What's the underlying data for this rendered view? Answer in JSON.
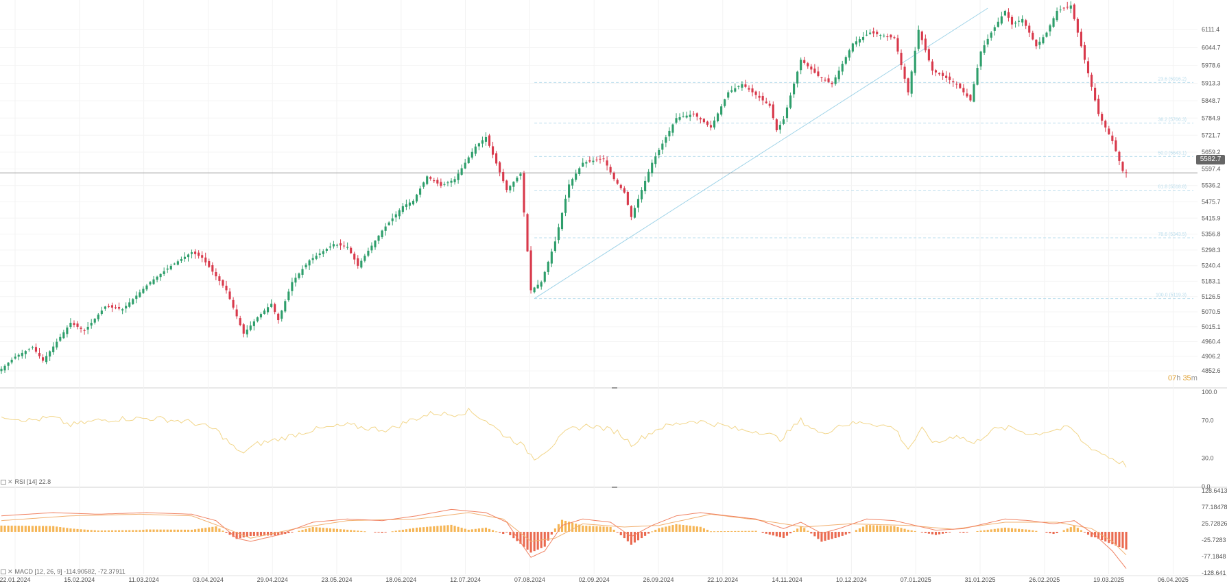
{
  "chart_data": [
    {
      "type": "candlestick",
      "pane": "price",
      "ylim": [
        4800,
        6190
      ],
      "y_ticks": [
        "6111.4",
        "6044.7",
        "5978.6",
        "5913.3",
        "5848.7",
        "5784.9",
        "5721.7",
        "5659.2",
        "5597.4",
        "5536.2",
        "5475.7",
        "5415.9",
        "5356.8",
        "5298.3",
        "5240.4",
        "5183.1",
        "5126.5",
        "5070.5",
        "5015.1",
        "4960.4",
        "4906.2",
        "4852.6"
      ],
      "last_price": "5582.7",
      "countdown": {
        "hours": "07",
        "h": "h",
        "minutes": "35",
        "m": "m"
      },
      "fibonacci": [
        {
          "label": "23.6 (5916.2)",
          "price": 5916.2
        },
        {
          "label": "38.2 (5766.3)",
          "price": 5766.3
        },
        {
          "label": "50.0 (5643.1)",
          "price": 5643.1
        },
        {
          "label": "61.8 (5518.8)",
          "price": 5518.8
        },
        {
          "label": "78.6 (5343.5)",
          "price": 5343.5
        },
        {
          "label": "100.0 (5119.3)",
          "price": 5119.3
        }
      ],
      "trendline": {
        "from": {
          "x": 154,
          "y": 5119.3
        },
        "to": {
          "x": 285,
          "y": 6190
        }
      },
      "keypoints": [
        [
          0,
          4860
        ],
        [
          4,
          4905
        ],
        [
          9,
          4940
        ],
        [
          12,
          4890
        ],
        [
          20,
          5030
        ],
        [
          24,
          5000
        ],
        [
          30,
          5090
        ],
        [
          35,
          5080
        ],
        [
          43,
          5180
        ],
        [
          49,
          5240
        ],
        [
          55,
          5290
        ],
        [
          58,
          5270
        ],
        [
          65,
          5150
        ],
        [
          70,
          4990
        ],
        [
          74,
          5050
        ],
        [
          78,
          5100
        ],
        [
          80,
          5040
        ],
        [
          84,
          5180
        ],
        [
          89,
          5260
        ],
        [
          96,
          5320
        ],
        [
          100,
          5310
        ],
        [
          103,
          5240
        ],
        [
          110,
          5370
        ],
        [
          116,
          5460
        ],
        [
          119,
          5480
        ],
        [
          123,
          5570
        ],
        [
          127,
          5535
        ],
        [
          131,
          5560
        ],
        [
          137,
          5680
        ],
        [
          140,
          5715
        ],
        [
          146,
          5520
        ],
        [
          150,
          5580
        ],
        [
          153,
          5150
        ],
        [
          156,
          5180
        ],
        [
          160,
          5330
        ],
        [
          164,
          5540
        ],
        [
          168,
          5620
        ],
        [
          174,
          5635
        ],
        [
          177,
          5560
        ],
        [
          180,
          5510
        ],
        [
          182,
          5420
        ],
        [
          188,
          5620
        ],
        [
          195,
          5785
        ],
        [
          200,
          5800
        ],
        [
          205,
          5750
        ],
        [
          210,
          5880
        ],
        [
          214,
          5910
        ],
        [
          219,
          5860
        ],
        [
          222,
          5830
        ],
        [
          224,
          5740
        ],
        [
          226,
          5780
        ],
        [
          231,
          6000
        ],
        [
          236,
          5940
        ],
        [
          240,
          5910
        ],
        [
          246,
          6060
        ],
        [
          251,
          6100
        ],
        [
          258,
          6080
        ],
        [
          262,
          5880
        ],
        [
          265,
          6110
        ],
        [
          269,
          5960
        ],
        [
          272,
          5940
        ],
        [
          276,
          5910
        ],
        [
          280,
          5850
        ],
        [
          283,
          6030
        ],
        [
          286,
          6100
        ],
        [
          290,
          6180
        ],
        [
          292,
          6130
        ],
        [
          295,
          6150
        ],
        [
          299,
          6050
        ],
        [
          302,
          6100
        ],
        [
          305,
          6180
        ],
        [
          309,
          6200
        ],
        [
          312,
          6050
        ],
        [
          317,
          5800
        ],
        [
          321,
          5700
        ],
        [
          324,
          5590
        ],
        [
          325,
          5582.7
        ]
      ]
    },
    {
      "type": "line",
      "pane": "rsi",
      "label": "RSI [14] 22.8",
      "ylim": [
        0,
        100
      ],
      "y_ticks": [
        "100.0",
        "70.0",
        "30.0",
        "0.0"
      ],
      "keypoints": [
        [
          0,
          75
        ],
        [
          8,
          70
        ],
        [
          15,
          73
        ],
        [
          20,
          65
        ],
        [
          28,
          70
        ],
        [
          36,
          72
        ],
        [
          45,
          72
        ],
        [
          55,
          68
        ],
        [
          62,
          60
        ],
        [
          69,
          35
        ],
        [
          74,
          45
        ],
        [
          80,
          50
        ],
        [
          90,
          60
        ],
        [
          100,
          65
        ],
        [
          105,
          62
        ],
        [
          112,
          60
        ],
        [
          118,
          70
        ],
        [
          125,
          78
        ],
        [
          130,
          76
        ],
        [
          135,
          80
        ],
        [
          140,
          70
        ],
        [
          145,
          55
        ],
        [
          150,
          45
        ],
        [
          154,
          30
        ],
        [
          158,
          40
        ],
        [
          164,
          60
        ],
        [
          170,
          65
        ],
        [
          178,
          58
        ],
        [
          182,
          45
        ],
        [
          190,
          62
        ],
        [
          200,
          70
        ],
        [
          208,
          65
        ],
        [
          213,
          60
        ],
        [
          220,
          58
        ],
        [
          225,
          50
        ],
        [
          231,
          70
        ],
        [
          237,
          55
        ],
        [
          242,
          65
        ],
        [
          250,
          68
        ],
        [
          258,
          62
        ],
        [
          262,
          40
        ],
        [
          266,
          60
        ],
        [
          270,
          45
        ],
        [
          276,
          55
        ],
        [
          281,
          45
        ],
        [
          286,
          60
        ],
        [
          292,
          62
        ],
        [
          298,
          55
        ],
        [
          304,
          60
        ],
        [
          309,
          62
        ],
        [
          313,
          45
        ],
        [
          318,
          35
        ],
        [
          322,
          28
        ],
        [
          325,
          22.8
        ]
      ]
    },
    {
      "type": "bar+line",
      "pane": "macd",
      "label": "MACD [12, 26, 9] -114.90582, -72.37911",
      "ylim": [
        -128.641,
        128.6413
      ],
      "y_ticks": [
        "128.6413",
        "77.18478",
        "25.72826",
        "-25.7283",
        "-77.1848",
        "-128.641"
      ],
      "macd_keypoints": [
        [
          0,
          50
        ],
        [
          15,
          60
        ],
        [
          28,
          55
        ],
        [
          42,
          60
        ],
        [
          55,
          55
        ],
        [
          62,
          35
        ],
        [
          68,
          -20
        ],
        [
          72,
          -30
        ],
        [
          80,
          -10
        ],
        [
          90,
          30
        ],
        [
          100,
          40
        ],
        [
          110,
          35
        ],
        [
          120,
          50
        ],
        [
          130,
          70
        ],
        [
          140,
          60
        ],
        [
          146,
          30
        ],
        [
          153,
          -80
        ],
        [
          157,
          -60
        ],
        [
          162,
          20
        ],
        [
          168,
          40
        ],
        [
          176,
          30
        ],
        [
          182,
          -15
        ],
        [
          188,
          20
        ],
        [
          195,
          50
        ],
        [
          202,
          60
        ],
        [
          210,
          50
        ],
        [
          218,
          40
        ],
        [
          226,
          10
        ],
        [
          231,
          30
        ],
        [
          237,
          -5
        ],
        [
          242,
          10
        ],
        [
          250,
          40
        ],
        [
          258,
          35
        ],
        [
          264,
          20
        ],
        [
          270,
          5
        ],
        [
          278,
          10
        ],
        [
          284,
          25
        ],
        [
          290,
          40
        ],
        [
          297,
          35
        ],
        [
          304,
          25
        ],
        [
          310,
          35
        ],
        [
          316,
          -10
        ],
        [
          321,
          -60
        ],
        [
          325,
          -114.90582
        ]
      ],
      "signal_keypoints": [
        [
          0,
          35
        ],
        [
          20,
          50
        ],
        [
          40,
          55
        ],
        [
          55,
          50
        ],
        [
          65,
          10
        ],
        [
          72,
          -20
        ],
        [
          85,
          10
        ],
        [
          100,
          35
        ],
        [
          120,
          40
        ],
        [
          135,
          60
        ],
        [
          145,
          40
        ],
        [
          153,
          -30
        ],
        [
          160,
          -20
        ],
        [
          168,
          25
        ],
        [
          180,
          15
        ],
        [
          190,
          20
        ],
        [
          205,
          55
        ],
        [
          220,
          35
        ],
        [
          232,
          15
        ],
        [
          245,
          25
        ],
        [
          262,
          20
        ],
        [
          275,
          8
        ],
        [
          290,
          30
        ],
        [
          305,
          30
        ],
        [
          315,
          10
        ],
        [
          321,
          -30
        ],
        [
          325,
          -72.37911
        ]
      ]
    }
  ],
  "x_axis_labels": [
    "22.01.2024",
    "15.02.2024",
    "11.03.2024",
    "03.04.2024",
    "29.04.2024",
    "23.05.2024",
    "18.06.2024",
    "12.07.2024",
    "07.08.2024",
    "02.09.2024",
    "26.09.2024",
    "22.10.2024",
    "14.11.2024",
    "10.12.2024",
    "07.01.2025",
    "31.01.2025",
    "26.02.2025",
    "19.03.2025",
    "06.04.2025"
  ],
  "colors": {
    "up": "#2e9e6b",
    "down": "#d8394b",
    "rsi": "#f2d68a",
    "macd": "#f08060",
    "signal": "#f2b070",
    "hist_pos": "#f5b555",
    "hist_neg": "#ea6a50",
    "fib": "#b8dcec"
  }
}
